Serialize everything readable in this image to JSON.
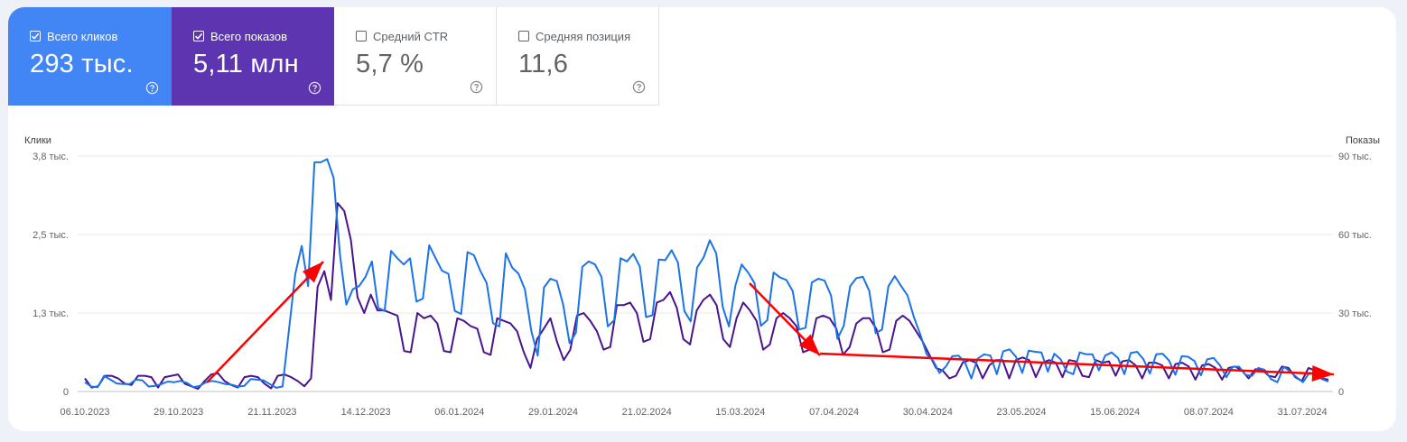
{
  "metrics": {
    "clicks": {
      "label": "Всего кликов",
      "value": "293 тыс.",
      "checked": true,
      "color": "#4285f4"
    },
    "impressions": {
      "label": "Всего показов",
      "value": "5,11 млн",
      "checked": true,
      "color": "#5e35b1"
    },
    "ctr": {
      "label": "Средний CTR",
      "value": "5,7 %",
      "checked": false
    },
    "position": {
      "label": "Средняя позиция",
      "value": "11,6",
      "checked": false
    }
  },
  "chart_data": {
    "type": "line",
    "y_left_label": "Клики",
    "y_right_label": "Показы",
    "y_left_ticks": [
      "3,8 тыс.",
      "2,5 тыс.",
      "1,3 тыс.",
      "0"
    ],
    "y_right_ticks": [
      "90 тыс.",
      "60 тыс.",
      "30 тыс.",
      "0"
    ],
    "y_left_range": [
      0,
      3800
    ],
    "y_right_range": [
      0,
      90000
    ],
    "x_tick_labels": [
      "06.10.2023",
      "29.10.2023",
      "21.11.2023",
      "14.12.2023",
      "06.01.2024",
      "29.01.2024",
      "21.02.2024",
      "15.03.2024",
      "07.04.2024",
      "30.04.2024",
      "23.05.2024",
      "15.06.2024",
      "08.07.2024",
      "31.07.2024"
    ],
    "x_range": [
      "2023-10-06",
      "2024-08-07"
    ],
    "grid": true,
    "series": [
      {
        "name": "Клики",
        "axis": "left",
        "color": "#1a73e8",
        "values": [
          150,
          80,
          70,
          250,
          190,
          130,
          120,
          120,
          190,
          180,
          80,
          90,
          120,
          160,
          150,
          170,
          140,
          70,
          90,
          150,
          170,
          150,
          120,
          110,
          80,
          90,
          200,
          190,
          180,
          120,
          60,
          80,
          1000,
          1900,
          2350,
          1700,
          3700,
          3700,
          3750,
          3450,
          2200,
          1400,
          1650,
          1700,
          1850,
          2100,
          1350,
          1300,
          2270,
          2150,
          2050,
          2150,
          1450,
          1500,
          2360,
          2150,
          1950,
          1900,
          1300,
          1250,
          2250,
          2200,
          1950,
          1750,
          1100,
          1050,
          2230,
          2000,
          1900,
          1650,
          980,
          580,
          1680,
          1820,
          1780,
          1400,
          780,
          950,
          2010,
          2100,
          2050,
          1850,
          1050,
          1150,
          2150,
          2100,
          2220,
          2020,
          1200,
          1230,
          2130,
          2120,
          2280,
          2080,
          1300,
          1130,
          2000,
          2160,
          2440,
          2230,
          1370,
          1050,
          1710,
          2050,
          1920,
          1750,
          1060,
          1150,
          1920,
          1840,
          1800,
          1620,
          1000,
          1030,
          1760,
          1820,
          1790,
          1550,
          850,
          1060,
          1700,
          1830,
          1850,
          1620,
          940,
          1000,
          1700,
          1860,
          1700,
          1550,
          1200,
          920,
          600,
          500,
          300,
          400,
          570,
          580,
          470,
          210,
          530,
          600,
          580,
          280,
          650,
          680,
          560,
          300,
          660,
          640,
          630,
          320,
          610,
          520,
          320,
          280,
          630,
          600,
          600,
          340,
          580,
          630,
          540,
          280,
          620,
          640,
          520,
          290,
          600,
          610,
          500,
          270,
          570,
          560,
          490,
          260,
          520,
          540,
          420,
          230,
          400,
          400,
          270,
          250,
          380,
          350,
          200,
          150,
          400,
          320,
          230,
          150,
          300,
          280,
          200,
          160
        ]
      },
      {
        "name": "Показы",
        "axis": "right",
        "color": "#4a148c",
        "values": [
          5000,
          1500,
          2000,
          6000,
          6000,
          5000,
          3000,
          2500,
          6000,
          6000,
          5500,
          1500,
          5500,
          6000,
          6500,
          3000,
          2000,
          1000,
          4000,
          6500,
          7000,
          4000,
          2500,
          1500,
          5500,
          6000,
          5500,
          3000,
          1200,
          6000,
          6500,
          5500,
          4000,
          2000,
          5000,
          40000,
          46000,
          35000,
          72000,
          69000,
          58000,
          36000,
          30000,
          37000,
          31000,
          31000,
          30000,
          29000,
          15500,
          15000,
          30000,
          28000,
          29000,
          26000,
          15500,
          15000,
          28000,
          27000,
          25000,
          24000,
          15000,
          14000,
          28000,
          27000,
          26000,
          23000,
          15000,
          9000,
          20000,
          24000,
          28000,
          19000,
          12000,
          16000,
          29000,
          30000,
          27000,
          23000,
          16000,
          17000,
          33000,
          33000,
          34000,
          30000,
          19000,
          20000,
          34000,
          35000,
          38000,
          32000,
          20000,
          18000,
          31000,
          35000,
          37000,
          33000,
          20000,
          17000,
          28000,
          34000,
          31000,
          27000,
          16000,
          18000,
          28000,
          30000,
          28000,
          25000,
          15000,
          16000,
          28000,
          29000,
          28000,
          24000,
          14000,
          17000,
          26000,
          28000,
          28000,
          24000,
          15000,
          16000,
          27000,
          29000,
          27000,
          23000,
          19000,
          14000,
          9000,
          8000,
          5000,
          6000,
          11000,
          12000,
          11000,
          5000,
          10000,
          12000,
          12000,
          5000,
          12000,
          13000,
          12000,
          5500,
          11000,
          12000,
          11000,
          5500,
          12000,
          11500,
          6000,
          5500,
          12000,
          11000,
          11500,
          6000,
          11500,
          12000,
          10000,
          5000,
          11000,
          11000,
          10000,
          5000,
          10500,
          11000,
          9500,
          4500,
          10000,
          10500,
          9000,
          4500,
          9000,
          9500,
          8000,
          5000,
          8500,
          8500,
          6000,
          5500,
          9500,
          9000,
          5500,
          4000,
          9000,
          8000,
          5000,
          4500
        ]
      }
    ],
    "annotations": {
      "type": "arrows",
      "color": "#ff0000"
    }
  }
}
